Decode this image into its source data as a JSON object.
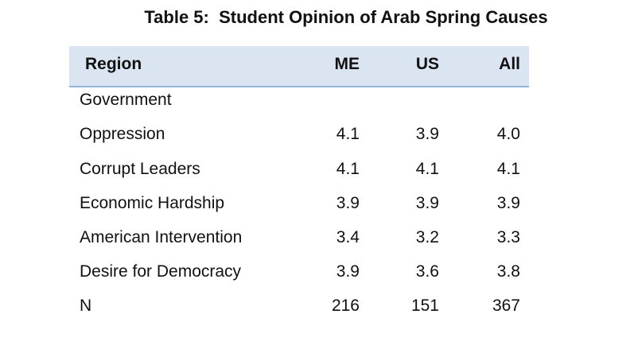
{
  "title": "Table 5:  Student Opinion of Arab Spring Causes",
  "table": {
    "header": [
      "Region",
      "ME",
      "US",
      "All"
    ],
    "rows": [
      [
        "Government"
      ],
      [
        "Oppression",
        "4.1",
        "3.9",
        "4.0"
      ],
      [
        "Corrupt Leaders",
        "4.1",
        "4.1",
        "4.1"
      ],
      [
        "Economic Hardship",
        "3.9",
        "3.9",
        "3.9"
      ],
      [
        "American Intervention",
        "3.4",
        "3.2",
        "3.3"
      ],
      [
        "Desire for Democracy",
        "3.9",
        "3.6",
        "3.8"
      ],
      [
        "N",
        "216",
        "151",
        "367"
      ]
    ]
  }
}
